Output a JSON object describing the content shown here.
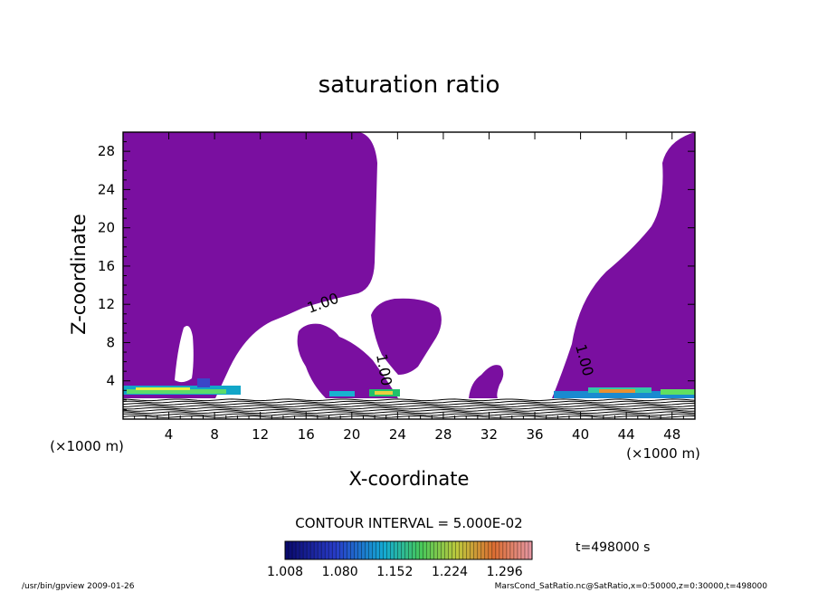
{
  "chart_data": {
    "type": "heatmap",
    "title": "saturation ratio",
    "xlabel": "X-coordinate",
    "ylabel": "Z-coordinate",
    "x_unit": "(×1000 m)",
    "z_unit": "(×1000 m)",
    "xlim": [
      0,
      50
    ],
    "ylim": [
      0,
      30
    ],
    "x_ticks": [
      4,
      8,
      12,
      16,
      20,
      24,
      28,
      32,
      36,
      40,
      44,
      48
    ],
    "y_ticks": [
      4,
      8,
      12,
      16,
      20,
      24,
      28
    ],
    "contour_interval_label": "CONTOUR INTERVAL = 5.000E-02",
    "contour_labels": [
      "1.00",
      "1.00",
      "1.00"
    ],
    "time_label": "t=498000 s",
    "colorbar": {
      "tick_values": [
        "1.008",
        "1.080",
        "1.152",
        "1.224",
        "1.296"
      ],
      "min": 1.008,
      "max": 1.332
    },
    "colors": {
      "saturated_fill": "#7a0fa0",
      "low": "#0a0a6e",
      "high": "#d4402a"
    }
  },
  "footer": {
    "left": "/usr/bin/gpview   2009-01-26",
    "right": "MarsCond_SatRatio.nc@SatRatio,x=0:50000,z=0:30000,t=498000"
  }
}
